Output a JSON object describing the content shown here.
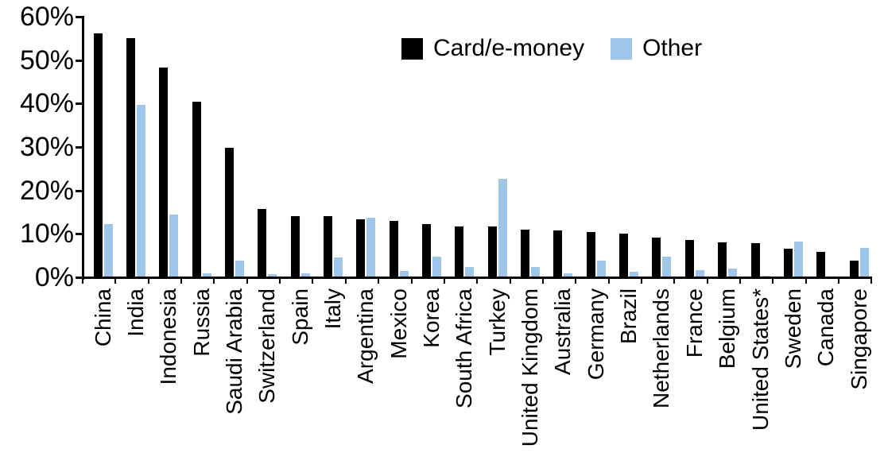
{
  "chart_data": {
    "type": "bar",
    "categories": [
      "China",
      "India",
      "Indonesia",
      "Russia",
      "Saudi Arabia",
      "Switzerland",
      "Spain",
      "Italy",
      "Argentina",
      "Mexico",
      "Korea",
      "South Africa",
      "Turkey",
      "United Kingdom",
      "Australia",
      "Germany",
      "Brazil",
      "Netherlands",
      "France",
      "Belgium",
      "United States*",
      "Sweden",
      "Canada",
      "Singapore"
    ],
    "series": [
      {
        "name": "Card/e-money",
        "color": "#000000",
        "values": [
          56.2,
          55.0,
          48.3,
          40.5,
          29.9,
          15.7,
          14.1,
          14.0,
          13.4,
          12.9,
          12.2,
          11.7,
          11.7,
          11.0,
          10.8,
          10.5,
          10.0,
          9.2,
          8.6,
          8.1,
          7.9,
          6.5,
          5.9,
          3.9
        ]
      },
      {
        "name": "Other",
        "color": "#9EC6E8",
        "values": [
          12.3,
          39.7,
          14.5,
          1.0,
          3.9,
          0.8,
          1.0,
          4.6,
          13.8,
          1.4,
          4.7,
          2.4,
          22.6,
          2.3,
          1.0,
          3.9,
          1.2,
          4.8,
          1.6,
          2.1,
          0.3,
          8.2,
          0,
          6.7
        ]
      }
    ],
    "title": "",
    "xlabel": "",
    "ylabel": "",
    "ylim": [
      0,
      60
    ],
    "ytick_step": 10,
    "ytick_labels": [
      "0%",
      "10%",
      "20%",
      "30%",
      "40%",
      "50%",
      "60%"
    ],
    "grid": false,
    "legend_position": "top-center"
  },
  "legend": {
    "card_label": "Card/e-money",
    "other_label": "Other"
  }
}
